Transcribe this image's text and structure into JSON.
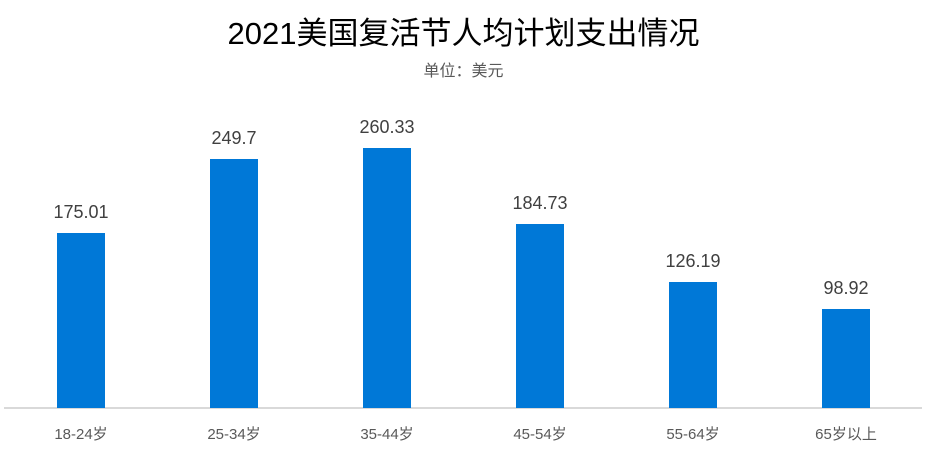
{
  "chart_data": {
    "type": "bar",
    "title": "2021美国复活节人均计划支出情况",
    "subtitle": "单位：美元",
    "xlabel": "",
    "ylabel": "",
    "categories": [
      "18-24岁",
      "25-34岁",
      "35-44岁",
      "45-54岁",
      "55-64岁",
      "65岁以上"
    ],
    "values": [
      175.01,
      249.7,
      260.33,
      184.73,
      126.19,
      98.92
    ],
    "value_labels": [
      "175.01",
      "249.7",
      "260.33",
      "184.73",
      "126.19",
      "98.92"
    ],
    "ylim": [
      0,
      260.33
    ],
    "grid": false,
    "legend": null,
    "bar_color": "#0078d7"
  }
}
